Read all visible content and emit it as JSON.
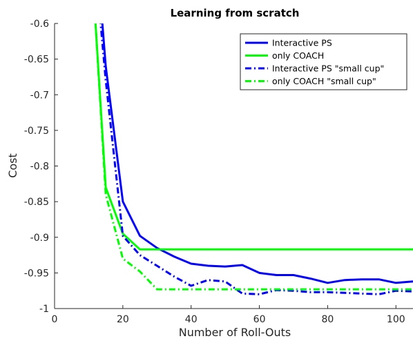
{
  "chart_data": {
    "type": "line",
    "title": "Learning from scratch",
    "xlabel": "Number of Roll-Outs",
    "ylabel": "Cost",
    "xlim": [
      0,
      105
    ],
    "ylim": [
      -1,
      -0.6
    ],
    "x_ticks": [
      0,
      20,
      40,
      60,
      80,
      100
    ],
    "x_tick_labels": [
      "0",
      "20",
      "40",
      "60",
      "80",
      "100"
    ],
    "y_ticks": [
      -1,
      -0.95,
      -0.9,
      -0.85,
      -0.8,
      -0.75,
      -0.7,
      -0.65,
      -0.6
    ],
    "y_tick_labels": [
      "-1",
      "-0.95",
      "-0.9",
      "-0.85",
      "-0.8",
      "-0.75",
      "-0.7",
      "-0.65",
      "-0.6"
    ],
    "grid": false,
    "legend_position": "top-right",
    "series": [
      {
        "name": "Interactive PS",
        "color": "#0000ff",
        "style": "solid",
        "x": [
          13.5,
          14,
          15,
          20,
          25,
          30,
          35,
          40,
          45,
          50,
          55,
          60,
          65,
          70,
          75,
          80,
          85,
          90,
          95,
          100,
          105
        ],
        "y": [
          -0.5,
          -0.6,
          -0.66,
          -0.85,
          -0.898,
          -0.915,
          -0.927,
          -0.937,
          -0.94,
          -0.941,
          -0.939,
          -0.95,
          -0.953,
          -0.953,
          -0.958,
          -0.964,
          -0.96,
          -0.959,
          -0.959,
          -0.964,
          -0.962
        ]
      },
      {
        "name": "only COACH",
        "color": "#00ff00",
        "style": "solid",
        "x": [
          11,
          12,
          15,
          20,
          25,
          30,
          40,
          60,
          80,
          100,
          105
        ],
        "y": [
          -0.5,
          -0.6,
          -0.83,
          -0.895,
          -0.917,
          -0.917,
          -0.917,
          -0.917,
          -0.917,
          -0.917,
          -0.917
        ]
      },
      {
        "name": "Interactive PS \"small cup\"",
        "color": "#0000ff",
        "style": "dashdot",
        "x": [
          13,
          13.5,
          15,
          20,
          25,
          30,
          35,
          40,
          45,
          50,
          55,
          60,
          65,
          70,
          75,
          80,
          85,
          90,
          95,
          100,
          105
        ],
        "y": [
          -0.5,
          -0.6,
          -0.68,
          -0.898,
          -0.925,
          -0.94,
          -0.955,
          -0.968,
          -0.96,
          -0.962,
          -0.979,
          -0.98,
          -0.974,
          -0.975,
          -0.977,
          -0.977,
          -0.978,
          -0.979,
          -0.98,
          -0.975,
          -0.976
        ]
      },
      {
        "name": "only COACH \"small cup\"",
        "color": "#00ff00",
        "style": "dashdot",
        "x": [
          11,
          12,
          15,
          20,
          25,
          30,
          40,
          60,
          80,
          100,
          105
        ],
        "y": [
          -0.5,
          -0.6,
          -0.84,
          -0.93,
          -0.948,
          -0.973,
          -0.973,
          -0.973,
          -0.973,
          -0.973,
          -0.973
        ]
      }
    ]
  }
}
